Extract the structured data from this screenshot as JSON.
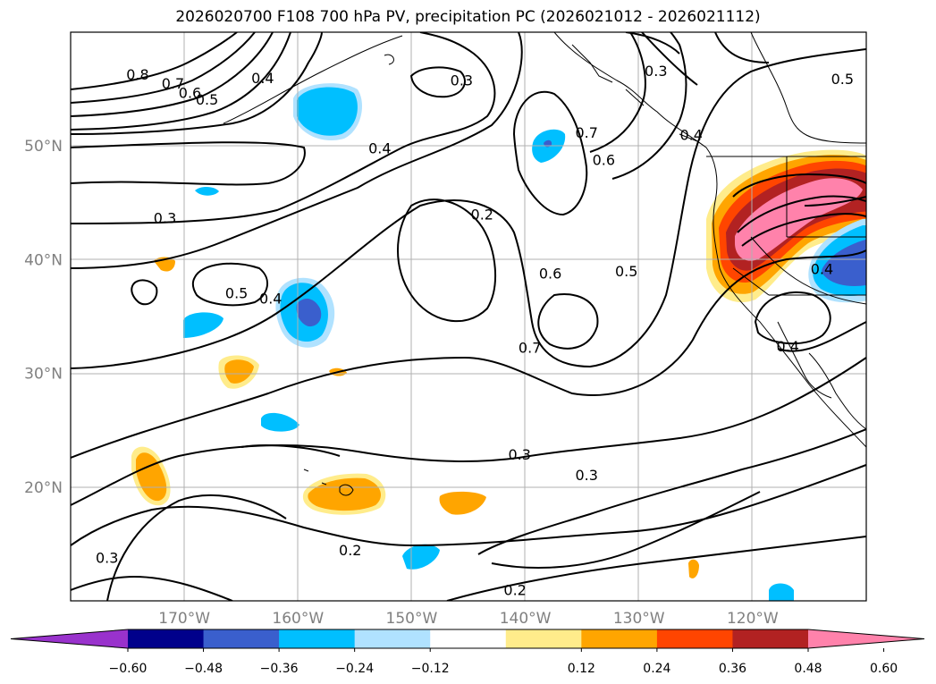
{
  "title": "2026020700 F108 700 hPa PV, precipitation PC (2026021012 - 2026021112)",
  "chart_data": {
    "type": "map-contour",
    "title": "2026020700 F108 700 hPa PV, precipitation PC (2026021012 - 2026021112)",
    "lon_range": [
      -180,
      -110
    ],
    "lat_range": [
      10,
      60
    ],
    "grid": true,
    "x_ticks": [
      "170°W",
      "160°W",
      "150°W",
      "140°W",
      "130°W",
      "120°W"
    ],
    "x_tick_values": [
      -170,
      -160,
      -150,
      -140,
      -130,
      -120
    ],
    "y_ticks": [
      "20°N",
      "30°N",
      "40°N",
      "50°N"
    ],
    "y_tick_values": [
      20,
      30,
      40,
      50
    ],
    "contour_labels": [
      {
        "text": "0.8",
        "lon": -174.1,
        "lat": 56.3
      },
      {
        "text": "0.7",
        "lon": -171.0,
        "lat": 55.5
      },
      {
        "text": "0.6",
        "lon": -169.5,
        "lat": 54.7
      },
      {
        "text": "0.5",
        "lon": -168.0,
        "lat": 54.1
      },
      {
        "text": "0.4",
        "lon": -163.1,
        "lat": 56.0
      },
      {
        "text": "0.3",
        "lon": -145.6,
        "lat": 55.8
      },
      {
        "text": "0.4",
        "lon": -152.8,
        "lat": 49.8
      },
      {
        "text": "0.3",
        "lon": -171.7,
        "lat": 43.7
      },
      {
        "text": "0.2",
        "lon": -143.8,
        "lat": 44.0
      },
      {
        "text": "0.5",
        "lon": -165.4,
        "lat": 37.1
      },
      {
        "text": "0.4",
        "lon": -162.4,
        "lat": 36.6
      },
      {
        "text": "0.6",
        "lon": -137.8,
        "lat": 38.8
      },
      {
        "text": "0.5",
        "lon": -131.1,
        "lat": 39.0
      },
      {
        "text": "0.7",
        "lon": -139.6,
        "lat": 32.3
      },
      {
        "text": "0.3",
        "lon": -140.5,
        "lat": 22.9
      },
      {
        "text": "0.3",
        "lon": -134.6,
        "lat": 21.1
      },
      {
        "text": "0.2",
        "lon": -155.4,
        "lat": 14.5
      },
      {
        "text": "0.2",
        "lon": -140.9,
        "lat": 11.0
      },
      {
        "text": "0.3",
        "lon": -176.8,
        "lat": 13.8
      },
      {
        "text": "0.3",
        "lon": -128.5,
        "lat": 56.6
      },
      {
        "text": "0.5",
        "lon": -112.1,
        "lat": 55.9
      },
      {
        "text": "0.4",
        "lon": -125.4,
        "lat": 51.0
      },
      {
        "text": "0.7",
        "lon": -134.6,
        "lat": 51.2
      },
      {
        "text": "0.6",
        "lon": -133.1,
        "lat": 48.8
      },
      {
        "text": "0.4",
        "lon": -113.9,
        "lat": 39.2
      },
      {
        "text": "0.4",
        "lon": -116.9,
        "lat": 32.4
      }
    ],
    "colorbar": {
      "ticks": [
        "−0.60",
        "−0.48",
        "−0.36",
        "−0.24",
        "−0.12",
        "0.12",
        "0.24",
        "0.36",
        "0.48",
        "0.60"
      ],
      "colors": [
        "#9932cc",
        "#00008b",
        "#3a5fcd",
        "#00bfff",
        "#b0e2ff",
        "#ffffff",
        "#ffec8b",
        "#ffa500",
        "#ff4500",
        "#b22222",
        "#ff82ab"
      ]
    }
  }
}
